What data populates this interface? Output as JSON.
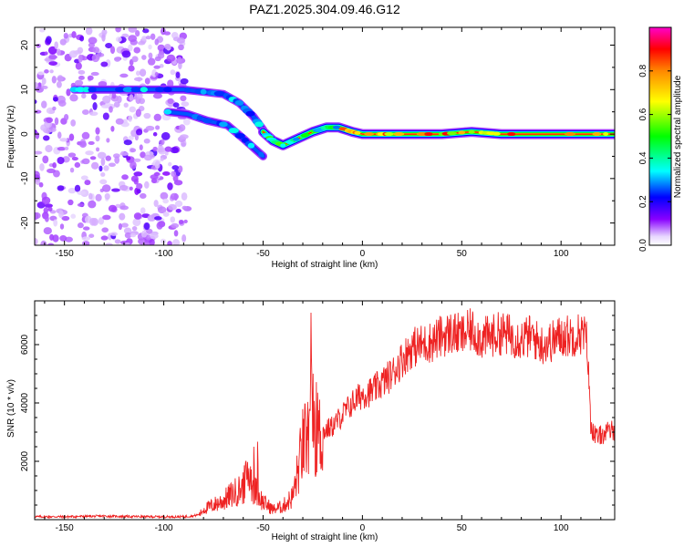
{
  "figure_title": "PAZ1.2025.304.09.46.G12",
  "chart_data": [
    {
      "type": "heatmap",
      "title": "PAZ1.2025.304.09.46.G12",
      "xlabel": "Height of straight line (km)",
      "ylabel": "Frequency (Hz)",
      "xlim": [
        -165,
        127
      ],
      "ylim": [
        -25,
        24
      ],
      "xticks": [
        -150,
        -100,
        -50,
        0,
        50,
        100
      ],
      "yticks": [
        -20,
        -10,
        0,
        10,
        20
      ],
      "colorbar": {
        "label": "Normalized spectral amplitude",
        "range": [
          0.0,
          1.0
        ],
        "ticks": [
          "0.0",
          "0.2",
          "0.4",
          "0.6",
          "0.8"
        ],
        "colors": [
          "#ffffff",
          "#8800ff",
          "#0000ff",
          "#00ffff",
          "#00ff00",
          "#ffff00",
          "#ff0000",
          "#ff00cc"
        ]
      },
      "features": [
        {
          "name": "noise",
          "x_range": [
            -165,
            -88
          ],
          "y_range": [
            -25,
            24
          ],
          "amplitude": 0.1
        },
        {
          "name": "upper-branch",
          "points": [
            [
              -145,
              10
            ],
            [
              -130,
              10
            ],
            [
              -110,
              10
            ],
            [
              -90,
              10
            ],
            [
              -80,
              9.5
            ],
            [
              -70,
              9
            ],
            [
              -62,
              7
            ],
            [
              -55,
              4
            ],
            [
              -50,
              1
            ]
          ],
          "amplitude": 0.3
        },
        {
          "name": "lower-branch",
          "points": [
            [
              -98,
              5
            ],
            [
              -88,
              4.5
            ],
            [
              -78,
              3
            ],
            [
              -68,
              2
            ],
            [
              -60,
              -1
            ],
            [
              -55,
              -3
            ],
            [
              -50,
              -5
            ]
          ],
          "amplitude": 0.25
        },
        {
          "name": "main-signal",
          "points": [
            [
              -50,
              0.5
            ],
            [
              -45,
              -1.5
            ],
            [
              -40,
              -2.5
            ],
            [
              -35,
              -1.5
            ],
            [
              -30,
              -0.5
            ],
            [
              -25,
              0.5
            ],
            [
              -18,
              1.5
            ],
            [
              -12,
              1.5
            ],
            [
              -5,
              0.5
            ],
            [
              0,
              0
            ],
            [
              10,
              0
            ],
            [
              20,
              0
            ],
            [
              40,
              0
            ],
            [
              55,
              0.5
            ],
            [
              70,
              0
            ],
            [
              100,
              0
            ],
            [
              127,
              0
            ]
          ],
          "amplitude": 0.85
        }
      ]
    },
    {
      "type": "line",
      "xlabel": "Height of straight line (km)",
      "ylabel": "SNR (10 * v/v)",
      "xlim": [
        -165,
        127
      ],
      "ylim": [
        0,
        7500
      ],
      "xticks": [
        -150,
        -100,
        -50,
        0,
        50,
        100
      ],
      "yticks": [
        2000,
        4000,
        6000
      ],
      "series": [
        {
          "name": "SNR",
          "color": "#ee2222",
          "x": [
            -165,
            -150,
            -130,
            -110,
            -90,
            -85,
            -82,
            -80,
            -75,
            -70,
            -65,
            -60,
            -57,
            -55,
            -50,
            -45,
            -40,
            -35,
            -32,
            -30,
            -27,
            -25,
            -24,
            -22,
            -20,
            -15,
            -10,
            -5,
            0,
            5,
            10,
            15,
            20,
            25,
            30,
            35,
            40,
            45,
            50,
            55,
            60,
            65,
            70,
            75,
            80,
            85,
            90,
            95,
            100,
            105,
            110,
            113,
            114,
            115,
            118,
            120,
            127
          ],
          "y": [
            100,
            100,
            120,
            100,
            100,
            130,
            180,
            350,
            500,
            650,
            900,
            1100,
            1700,
            1100,
            600,
            350,
            450,
            800,
            1800,
            2600,
            2900,
            4000,
            3300,
            2800,
            3000,
            3200,
            3600,
            4000,
            4300,
            4400,
            4700,
            5000,
            5500,
            5900,
            6000,
            6100,
            6300,
            6400,
            6300,
            6500,
            6200,
            6300,
            6400,
            6300,
            6200,
            6300,
            6000,
            6100,
            6300,
            6300,
            6400,
            6200,
            4700,
            3200,
            2800,
            2900,
            3100
          ]
        }
      ]
    }
  ]
}
